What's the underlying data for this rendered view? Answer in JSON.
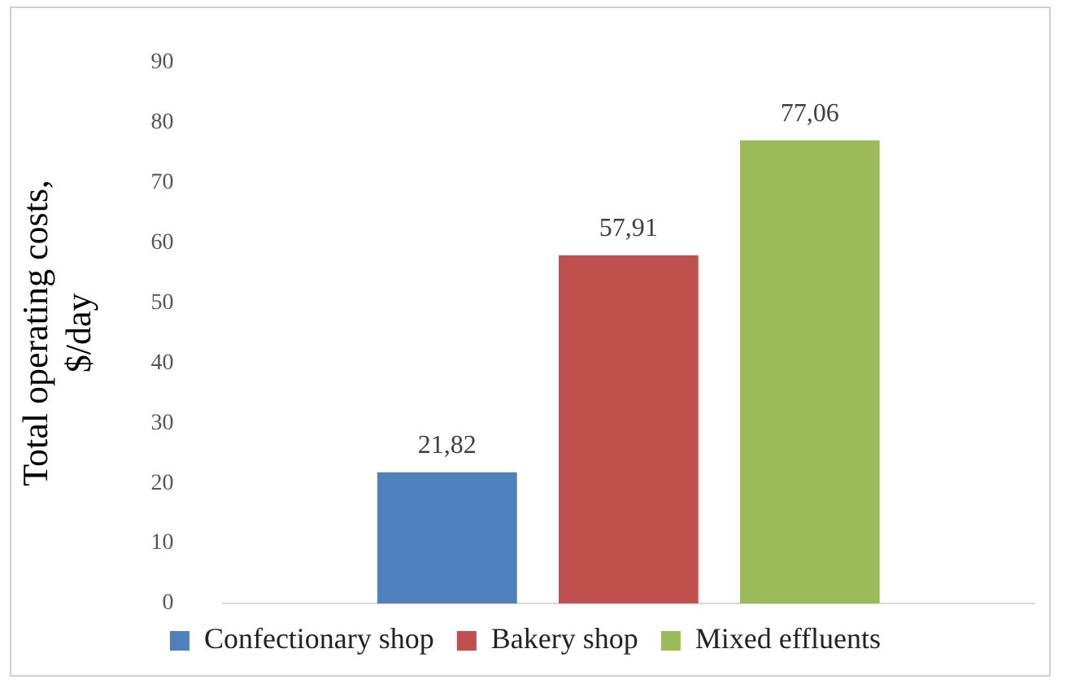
{
  "chart_data": {
    "type": "bar",
    "ylabel": "Total operating costs, $/day",
    "categories": [
      null
    ],
    "series": [
      {
        "name": "Confectionary shop",
        "color": "#4f81bd",
        "values": [
          21.82
        ],
        "value_labels": [
          "21,82"
        ]
      },
      {
        "name": "Bakery shop",
        "color": "#c0504d",
        "values": [
          57.91
        ],
        "value_labels": [
          "57,91"
        ]
      },
      {
        "name": "Mixed effluents",
        "color": "#9bbb59",
        "values": [
          77.06
        ],
        "value_labels": [
          "77,06"
        ]
      }
    ],
    "ylim": [
      0,
      90
    ],
    "yticks": [
      0,
      10,
      20,
      30,
      40,
      50,
      60,
      70,
      80,
      90
    ],
    "grid": false,
    "legend": "bottom"
  }
}
